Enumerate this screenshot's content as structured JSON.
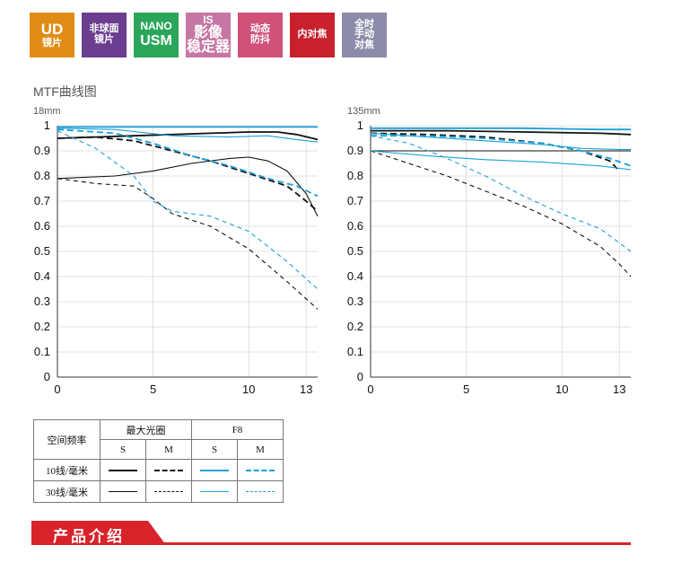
{
  "badges": [
    {
      "lines": [
        "UD",
        "镜片"
      ],
      "color": "#e08c16",
      "kind": "ud"
    },
    {
      "lines": [
        "非球面",
        "镜片"
      ],
      "color": "#6a3d8f",
      "kind": "std"
    },
    {
      "lines": [
        "NANO",
        "USM"
      ],
      "color": "#2aa65a",
      "kind": "nano"
    },
    {
      "lines": [
        "IS",
        "影像",
        "稳定器"
      ],
      "color": "#c676a2",
      "kind": "is"
    },
    {
      "lines": [
        "动态",
        "防抖"
      ],
      "color": "#d0527a",
      "kind": "std"
    },
    {
      "lines": [
        "内对焦"
      ],
      "color": "#c8202c",
      "kind": "std"
    },
    {
      "lines": [
        "全时",
        "手动",
        "对焦"
      ],
      "color": "#8d8baa",
      "kind": "std"
    }
  ],
  "section_title": "MTF曲线图",
  "colors": {
    "black": "#111111",
    "blue": "#1aa0d8",
    "axis": "#333333",
    "grid": "#d8d8d8"
  },
  "chart_data": [
    {
      "type": "line",
      "title": "18mm",
      "xlim": [
        0,
        13.6
      ],
      "ylim": [
        0,
        1
      ],
      "xticks": [
        0,
        5,
        10,
        13
      ],
      "yticks": [
        0,
        0.1,
        0.2,
        0.3,
        0.4,
        0.5,
        0.6,
        0.7,
        0.8,
        0.9,
        1
      ],
      "ytick_labels": [
        "0",
        "0.1",
        "0.2",
        "0.3",
        "0.4",
        "0.5",
        "0.6",
        "0.7",
        "0.8",
        "0.9",
        "1"
      ],
      "series": [
        {
          "color": "black",
          "width": 1.8,
          "dash": "",
          "x": [
            0,
            2,
            4,
            6,
            8,
            10,
            11.5,
            12.5,
            13.6
          ],
          "y": [
            0.95,
            0.955,
            0.96,
            0.965,
            0.97,
            0.975,
            0.975,
            0.965,
            0.945
          ]
        },
        {
          "color": "black",
          "width": 1.8,
          "dash": "7,4",
          "x": [
            0,
            2,
            4,
            6,
            8,
            10,
            12,
            13,
            13.6
          ],
          "y": [
            0.95,
            0.955,
            0.94,
            0.9,
            0.86,
            0.81,
            0.76,
            0.7,
            0.66
          ]
        },
        {
          "color": "black",
          "width": 1.1,
          "dash": "",
          "x": [
            0,
            3,
            5,
            7,
            9,
            10,
            11,
            12,
            13,
            13.6
          ],
          "y": [
            0.79,
            0.8,
            0.82,
            0.85,
            0.87,
            0.875,
            0.86,
            0.82,
            0.73,
            0.64
          ]
        },
        {
          "color": "black",
          "width": 1.1,
          "dash": "5,4",
          "x": [
            0,
            2,
            4,
            5,
            6,
            8,
            10,
            12,
            13.6
          ],
          "y": [
            0.79,
            0.77,
            0.76,
            0.71,
            0.65,
            0.6,
            0.51,
            0.38,
            0.27
          ]
        },
        {
          "color": "blue",
          "width": 1.8,
          "dash": "",
          "x": [
            0,
            4,
            8,
            12,
            13.6
          ],
          "y": [
            0.995,
            0.995,
            0.995,
            0.995,
            0.995
          ]
        },
        {
          "color": "blue",
          "width": 1.8,
          "dash": "7,4",
          "x": [
            0,
            3,
            5,
            7,
            9,
            11,
            12.5,
            13.6
          ],
          "y": [
            0.985,
            0.97,
            0.93,
            0.88,
            0.84,
            0.79,
            0.76,
            0.72
          ]
        },
        {
          "color": "blue",
          "width": 1.1,
          "dash": "",
          "x": [
            0,
            3,
            6,
            9,
            11,
            12.5,
            13.6
          ],
          "y": [
            0.99,
            0.985,
            0.96,
            0.955,
            0.96,
            0.945,
            0.935
          ]
        },
        {
          "color": "blue",
          "width": 1.1,
          "dash": "5,4",
          "x": [
            0,
            2,
            4,
            5,
            6,
            8,
            10,
            12,
            13.6
          ],
          "y": [
            0.98,
            0.91,
            0.8,
            0.7,
            0.66,
            0.64,
            0.58,
            0.46,
            0.35
          ]
        }
      ]
    },
    {
      "type": "line",
      "title": "135mm",
      "xlim": [
        0,
        13.6
      ],
      "ylim": [
        0,
        1
      ],
      "xticks": [
        0,
        5,
        10,
        13
      ],
      "yticks": [
        0,
        0.1,
        0.2,
        0.3,
        0.4,
        0.5,
        0.6,
        0.7,
        0.8,
        0.9,
        1
      ],
      "ytick_labels": [
        "0",
        "0.1",
        "0.2",
        "0.3",
        "0.4",
        "0.5",
        "0.6",
        "0.7",
        "0.8",
        "0.9",
        "1"
      ],
      "series": [
        {
          "color": "black",
          "width": 1.8,
          "dash": "",
          "x": [
            0,
            4,
            8,
            12,
            13.6
          ],
          "y": [
            0.98,
            0.98,
            0.975,
            0.97,
            0.965
          ]
        },
        {
          "color": "black",
          "width": 1.8,
          "dash": "7,4",
          "x": [
            0,
            3,
            6,
            9,
            11,
            12.5,
            13
          ],
          "y": [
            0.97,
            0.965,
            0.955,
            0.93,
            0.9,
            0.86,
            0.82
          ]
        },
        {
          "color": "black",
          "width": 1.1,
          "dash": "",
          "x": [
            0,
            4,
            8,
            11,
            13,
            13.6
          ],
          "y": [
            0.9,
            0.9,
            0.9,
            0.9,
            0.9,
            0.9
          ]
        },
        {
          "color": "black",
          "width": 1.1,
          "dash": "5,4",
          "x": [
            0,
            2,
            4,
            6,
            8,
            10,
            12,
            13,
            13.6
          ],
          "y": [
            0.9,
            0.85,
            0.8,
            0.74,
            0.68,
            0.61,
            0.52,
            0.45,
            0.4
          ]
        },
        {
          "color": "blue",
          "width": 1.8,
          "dash": "",
          "x": [
            0,
            4,
            8,
            12,
            13.6
          ],
          "y": [
            0.99,
            0.99,
            0.99,
            0.985,
            0.985
          ]
        },
        {
          "color": "blue",
          "width": 1.8,
          "dash": "7,4",
          "x": [
            0,
            3,
            6,
            9,
            11,
            12.5,
            13.6
          ],
          "y": [
            0.96,
            0.96,
            0.95,
            0.93,
            0.9,
            0.87,
            0.84
          ]
        },
        {
          "color": "blue",
          "width": 1.1,
          "dash": "",
          "x": [
            0,
            3,
            6,
            9,
            11,
            13,
            13.6
          ],
          "y": [
            0.97,
            0.955,
            0.94,
            0.925,
            0.91,
            0.905,
            0.905
          ]
        },
        {
          "color": "blue",
          "width": 1.1,
          "dash": "5,4",
          "x": [
            0,
            2,
            4,
            6,
            8,
            10,
            12,
            13.6
          ],
          "y": [
            0.96,
            0.93,
            0.87,
            0.8,
            0.72,
            0.65,
            0.59,
            0.5
          ]
        },
        {
          "color": "blue",
          "width": 1.1,
          "dash": "",
          "x": [
            0,
            3,
            6,
            9,
            12,
            13.6
          ],
          "y": [
            0.9,
            0.88,
            0.865,
            0.855,
            0.84,
            0.825
          ]
        }
      ]
    }
  ],
  "legend": {
    "header_label": "空间频率",
    "col_groups": [
      "最大光圈",
      "F8"
    ],
    "sub_cols": [
      "S",
      "M",
      "S",
      "M"
    ],
    "rows": [
      {
        "label": "10线/毫米",
        "weight": 2.2
      },
      {
        "label": "30线/毫米",
        "weight": 1.1
      }
    ]
  },
  "product_section": "产品介绍"
}
